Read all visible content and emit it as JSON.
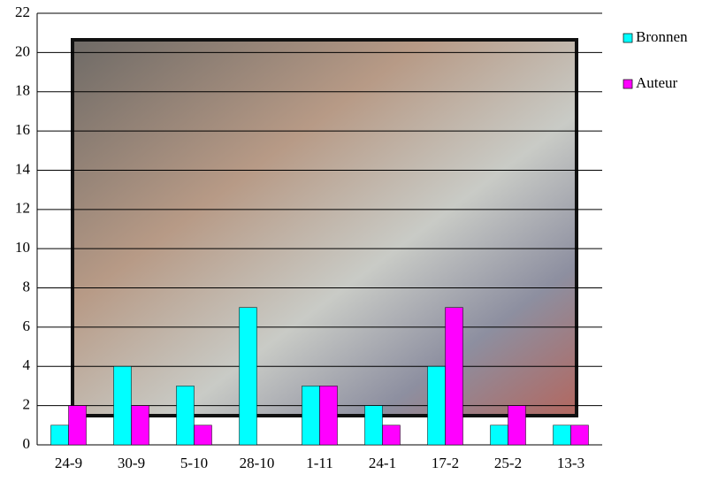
{
  "chart_data": {
    "type": "bar",
    "categories": [
      "24-9",
      "30-9",
      "5-10",
      "28-10",
      "1-11",
      "24-1",
      "17-2",
      "25-2",
      "13-3"
    ],
    "series": [
      {
        "name": "Bronnen",
        "color": "#00ffff",
        "values": [
          1,
          4,
          3,
          7,
          3,
          2,
          4,
          1,
          1
        ]
      },
      {
        "name": "Auteur",
        "color": "#ff00ff",
        "values": [
          2,
          2,
          1,
          0,
          3,
          1,
          7,
          2,
          1
        ]
      }
    ],
    "ylim": [
      0,
      22
    ],
    "yticks": [
      0,
      2,
      4,
      6,
      8,
      10,
      12,
      14,
      16,
      18,
      20,
      22
    ],
    "grid": true,
    "legend": "right"
  }
}
